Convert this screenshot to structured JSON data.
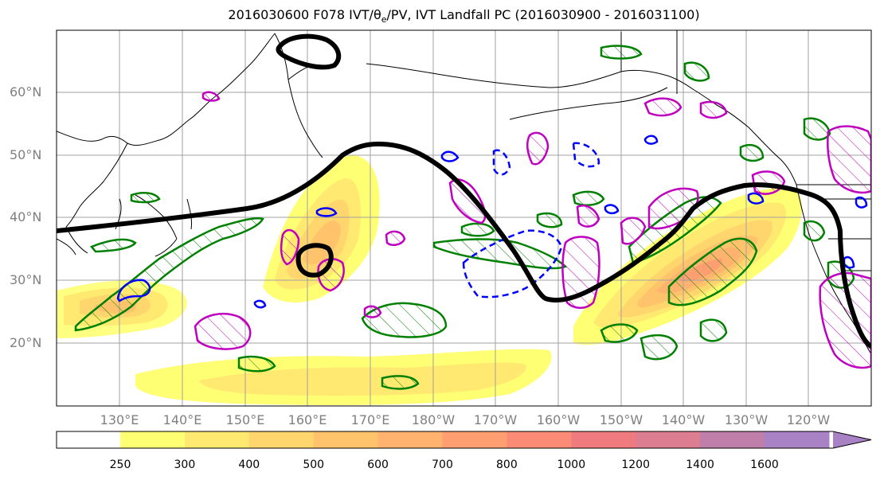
{
  "title": {
    "prefix": "2016030600 F078 IVT/",
    "theta": "θ",
    "theta_sub": "e",
    "suffix": "/PV, IVT Landfall PC (2016030900 - 2016031100)"
  },
  "lat_labels": [
    "60°N",
    "50°N",
    "40°N",
    "30°N",
    "20°N"
  ],
  "lat_values": [
    60,
    50,
    40,
    30,
    20
  ],
  "lon_labels": [
    "130°E",
    "140°E",
    "150°E",
    "160°E",
    "170°E",
    "180°W",
    "170°W",
    "160°W",
    "150°W",
    "140°W",
    "130°W",
    "120°W"
  ],
  "lon_values": [
    130,
    140,
    150,
    160,
    170,
    180,
    190,
    200,
    210,
    220,
    230,
    240
  ],
  "colorbar": {
    "levels": [
      "250",
      "300",
      "400",
      "500",
      "600",
      "700",
      "800",
      "1000",
      "1200",
      "1400",
      "1600"
    ],
    "colors": [
      "#ffff73",
      "#ffe970",
      "#ffd56e",
      "#ffc46b",
      "#ffb36e",
      "#ff9f71",
      "#fb8b74",
      "#f07b7e",
      "#dd7d92",
      "#c07eaa",
      "#a882c4"
    ]
  },
  "colors": {
    "contour_black": "#000000",
    "contour_green": "#008000",
    "contour_blue": "#0000ff",
    "contour_magenta": "#bf00bf"
  }
}
